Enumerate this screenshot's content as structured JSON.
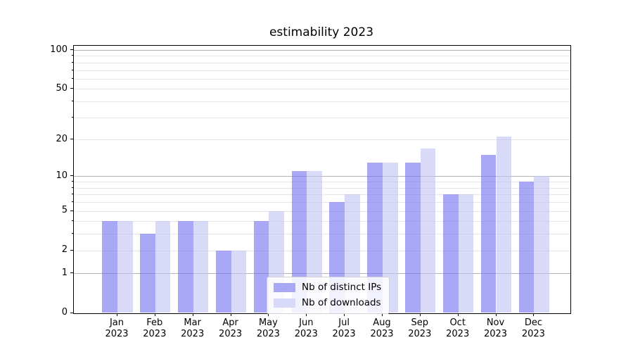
{
  "title": "estimability 2023",
  "legend": {
    "items": [
      {
        "label": "Nb of distinct IPs",
        "color": "#a8a8f5",
        "fill": "rgba(121,121,241,0.65)"
      },
      {
        "label": "Nb of downloads",
        "color": "#d8d8f8",
        "fill": "rgba(196,196,245,0.65)"
      }
    ]
  },
  "colors": {
    "major_grid": "#b2b2b2",
    "minor_grid": "#e6e6e6",
    "axis": "#000000",
    "text": "#000000",
    "background": "#ffffff"
  },
  "chart_data": {
    "type": "bar",
    "title": "estimability 2023",
    "categories": [
      "Jan\n2023",
      "Feb\n2023",
      "Mar\n2023",
      "Apr\n2023",
      "May\n2023",
      "Jun\n2023",
      "Jul\n2023",
      "Aug\n2023",
      "Sep\n2023",
      "Oct\n2023",
      "Nov\n2023",
      "Dec\n2023"
    ],
    "series": [
      {
        "name": "Nb of distinct IPs",
        "color": "#a8a8f5",
        "values": [
          4,
          3,
          4,
          2,
          4,
          11,
          6,
          13,
          13,
          7,
          15,
          9
        ]
      },
      {
        "name": "Nb of downloads",
        "color": "#d8d8f8",
        "values": [
          4,
          4,
          4,
          2,
          5,
          11,
          7,
          13,
          17,
          7,
          21,
          10
        ]
      }
    ],
    "xlabel": "",
    "ylabel": "",
    "ylim": [
      0,
      100
    ],
    "yscale": "symlog-like log(1+v)",
    "y_ticks_labeled": [
      0,
      1,
      2,
      5,
      10,
      20,
      50,
      100
    ],
    "y_gridlines_major": [
      1,
      10,
      100
    ],
    "y_gridlines_minor": [
      2,
      3,
      4,
      5,
      6,
      7,
      8,
      9,
      20,
      30,
      40,
      50,
      60,
      70,
      80,
      90
    ],
    "grid": "on",
    "legend_position": "lower center"
  }
}
